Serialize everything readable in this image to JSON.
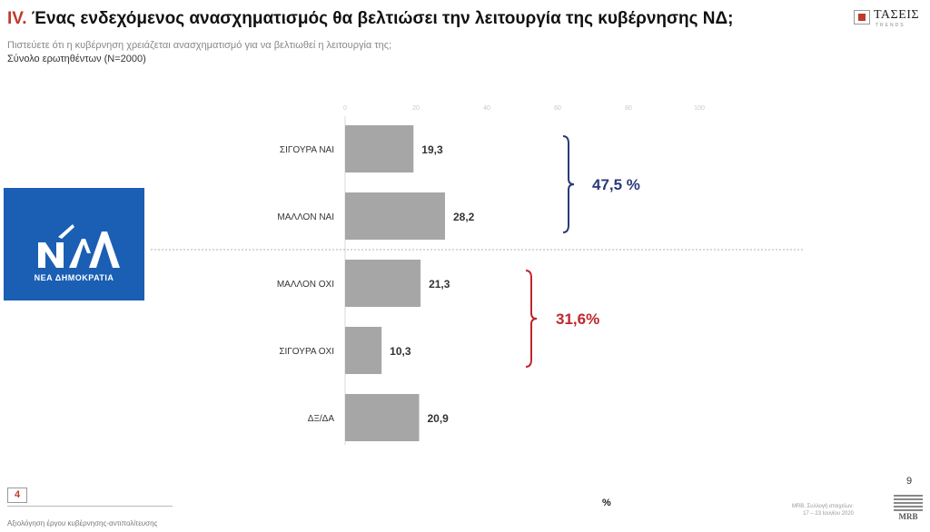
{
  "header": {
    "title_roman": "IV.",
    "title_text": " Ένας ενδεχόμενος ανασχηματισμός θα βελτιώσει την λειτουργία της κυβέρνησης ΝΔ;",
    "subtitle": "Πιστεύετε ότι η κυβέρνηση χρειάζεται ανασχηματισμό για να βελτιωθεί η λειτουργία της;",
    "base": "Σύνολο ερωτηθέντων (N=2000)"
  },
  "logo_top_right": {
    "name": "ΤΑΣΕΙΣ",
    "sub": "TRENDS"
  },
  "party_logo": {
    "letters": "ΝΔ",
    "text": "ΝΕΑ ΔΗΜΟΚΡΑΤΙΑ",
    "color": "#1a5fb4"
  },
  "chart_data": {
    "type": "bar",
    "orientation": "horizontal",
    "categories": [
      "ΣΙΓΟΥΡΑ ΝΑΙ",
      "ΜΑΛΛΟΝ ΝΑΙ",
      "ΜΑΛΛΟΝ ΟΧΙ",
      "ΣΙΓΟΥΡΑ ΟΧΙ",
      "ΔΞ/ΔΑ"
    ],
    "values": [
      19.3,
      28.2,
      21.3,
      10.3,
      20.9
    ],
    "value_labels": [
      "19,3",
      "28,2",
      "21,3",
      "10,3",
      "20,9"
    ],
    "xlim": [
      0,
      100
    ],
    "ticks": [
      "0",
      "20",
      "40",
      "60",
      "80",
      "100"
    ],
    "bar_color": "#a6a6a6",
    "annotations": [
      {
        "label": "47,5 %",
        "color": "#2b3a7a",
        "from_index": 0,
        "to_index": 1
      },
      {
        "label": "31,6%",
        "color": "#c0262d",
        "from_index": 2,
        "to_index": 3
      }
    ]
  },
  "footer": {
    "number": "4",
    "text": "Αξιολόγηση έργου κυβέρνησης-αντιπολίτευσης",
    "unit": "%",
    "source_line1": "MRB, Συλλογή στοιχείων:",
    "source_line2": "17 – 23 Ιουνίου 2020",
    "page": "9",
    "mrb_logo": "MRB"
  }
}
